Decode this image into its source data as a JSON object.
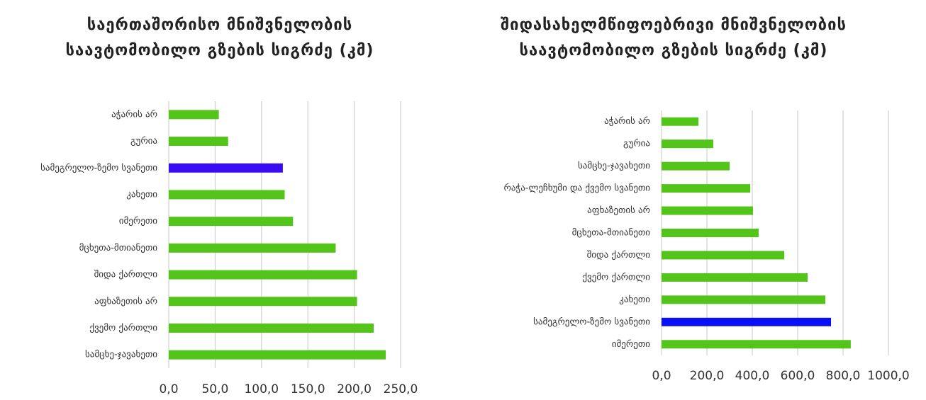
{
  "chart_data": [
    {
      "type": "hbar",
      "title": "საერთაშორისო მნიშვნელობის საავტომობილო გზების სიგრძე (კმ)",
      "categories": [
        "აჭარის არ",
        "გურია",
        "სამეგრელო-ზემო სვანეთი",
        "კახეთი",
        "იმერეთი",
        "მცხეთა-მთიანეთი",
        "შიდა ქართლი",
        "აფხაზეთის არ",
        "ქვემო ქართლი",
        "სამცხე-ჯავახეთი"
      ],
      "values": [
        54,
        64,
        123,
        125,
        134,
        180,
        203,
        203,
        221,
        234
      ],
      "colors": [
        "#52c41a",
        "#52c41a",
        "#3a0cf2",
        "#52c41a",
        "#52c41a",
        "#52c41a",
        "#52c41a",
        "#52c41a",
        "#52c41a",
        "#52c41a"
      ],
      "xlim": [
        0,
        250
      ],
      "xticks": [
        {
          "value": 0,
          "label": "0,0"
        },
        {
          "value": 50,
          "label": "50,0"
        },
        {
          "value": 100,
          "label": "100,0"
        },
        {
          "value": 150,
          "label": "150,0"
        },
        {
          "value": 200,
          "label": "200,0"
        },
        {
          "value": 250,
          "label": "250,0"
        }
      ],
      "grid": true
    },
    {
      "type": "hbar",
      "title": "შიდასახელმწიფოებრივი მნიშვნელობის საავტომობილო გზების სიგრძე (კმ)",
      "categories": [
        "აჭარის არ",
        "გურია",
        "სამცხე-ჯავახეთი",
        "რაჭა-ლეჩხუმი და ქვემო სვანეთი",
        "აფხაზეთის არ",
        "მცხეთა-მთიანეთი",
        "შიდა ქართლი",
        "ქვემო ქართლი",
        "კახეთი",
        "სამეგრელო-ზემო სვანეთი",
        "იმერეთი"
      ],
      "values": [
        163,
        228,
        300,
        391,
        403,
        428,
        541,
        644,
        722,
        747,
        834
      ],
      "colors": [
        "#52c41a",
        "#52c41a",
        "#52c41a",
        "#52c41a",
        "#52c41a",
        "#52c41a",
        "#52c41a",
        "#52c41a",
        "#52c41a",
        "#0a10f5",
        "#52c41a"
      ],
      "xlim": [
        0,
        1000
      ],
      "xticks": [
        {
          "value": 0,
          "label": "0,0"
        },
        {
          "value": 200,
          "label": "200,0"
        },
        {
          "value": 400,
          "label": "400,0"
        },
        {
          "value": 600,
          "label": "600,0"
        },
        {
          "value": 800,
          "label": "800,0"
        },
        {
          "value": 1000,
          "label": "1000,0"
        }
      ],
      "grid": true
    }
  ]
}
